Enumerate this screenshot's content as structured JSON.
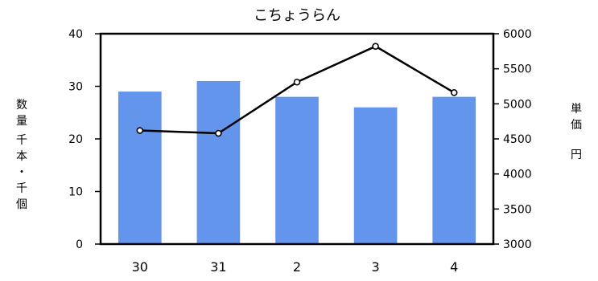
{
  "chart_data": {
    "type": "bar+line",
    "title": "こちょうらん",
    "categories": [
      "30",
      "31",
      "2",
      "3",
      "4"
    ],
    "bar_series": {
      "axis": "left",
      "color": "#6495ED",
      "values": [
        29,
        31,
        28,
        26,
        28
      ]
    },
    "line_series": {
      "axis": "right",
      "color": "#000000",
      "values": [
        4620,
        4580,
        5310,
        5820,
        5160
      ]
    },
    "y_left": {
      "label_lines": [
        "数量",
        "千本・千個"
      ],
      "range": [
        0,
        40
      ],
      "ticks": [
        "40",
        "30",
        "20",
        "10",
        "0"
      ]
    },
    "y_right": {
      "label_lines": [
        "単価",
        "円"
      ],
      "range": [
        3000,
        6000
      ],
      "ticks": [
        "6000",
        "5500",
        "5000",
        "4500",
        "4000",
        "3500",
        "3000"
      ]
    },
    "grid": false,
    "legend": "none"
  }
}
